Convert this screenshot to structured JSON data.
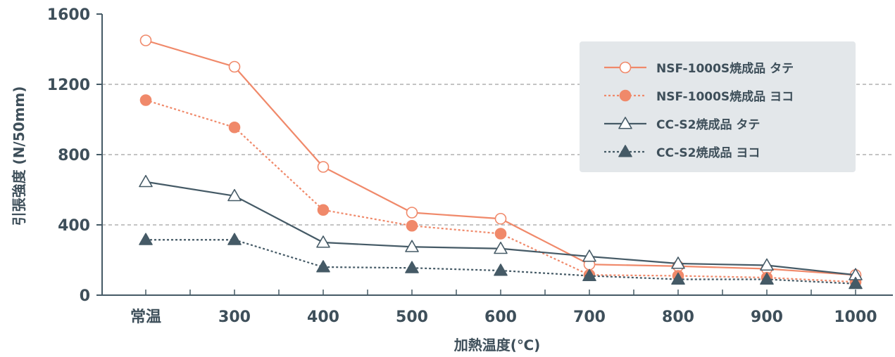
{
  "chart_data": {
    "type": "line",
    "title": "",
    "xlabel": "加熱温度(℃)",
    "ylabel": "引張強度 (N/50mm)",
    "categories": [
      "常温",
      "300",
      "400",
      "500",
      "600",
      "700",
      "800",
      "900",
      "1000"
    ],
    "ylim": [
      0,
      1600
    ],
    "yticks": [
      "0",
      "400",
      "800",
      "1200",
      "1600"
    ],
    "grid": "horizontal dashed at 400, 800, 1200",
    "legend_position": "top-right",
    "series": [
      {
        "name": "NSF-1000S焼成品 タテ",
        "color": "#f0896a",
        "line_style": "solid",
        "marker": "circle-open",
        "values": [
          1450,
          1300,
          730,
          470,
          435,
          175,
          165,
          150,
          115
        ]
      },
      {
        "name": "NSF-1000S焼成品 ヨコ",
        "color": "#f0896a",
        "line_style": "dotted",
        "marker": "circle-filled",
        "values": [
          1110,
          955,
          485,
          395,
          350,
          115,
          110,
          100,
          75
        ]
      },
      {
        "name": "CC-S2焼成品 タテ",
        "color": "#455a66",
        "line_style": "solid",
        "marker": "triangle-open",
        "values": [
          645,
          565,
          300,
          275,
          265,
          220,
          180,
          170,
          115
        ]
      },
      {
        "name": "CC-S2焼成品 ヨコ",
        "color": "#455a66",
        "line_style": "dotted",
        "marker": "triangle-filled",
        "values": [
          315,
          315,
          160,
          155,
          140,
          110,
          90,
          90,
          65
        ]
      }
    ]
  },
  "style": {
    "axis_color": "#455a66",
    "text_color": "#3e4f5a",
    "grid_color": "#8a8a8a",
    "legend_bg": "#e3e7ea"
  }
}
